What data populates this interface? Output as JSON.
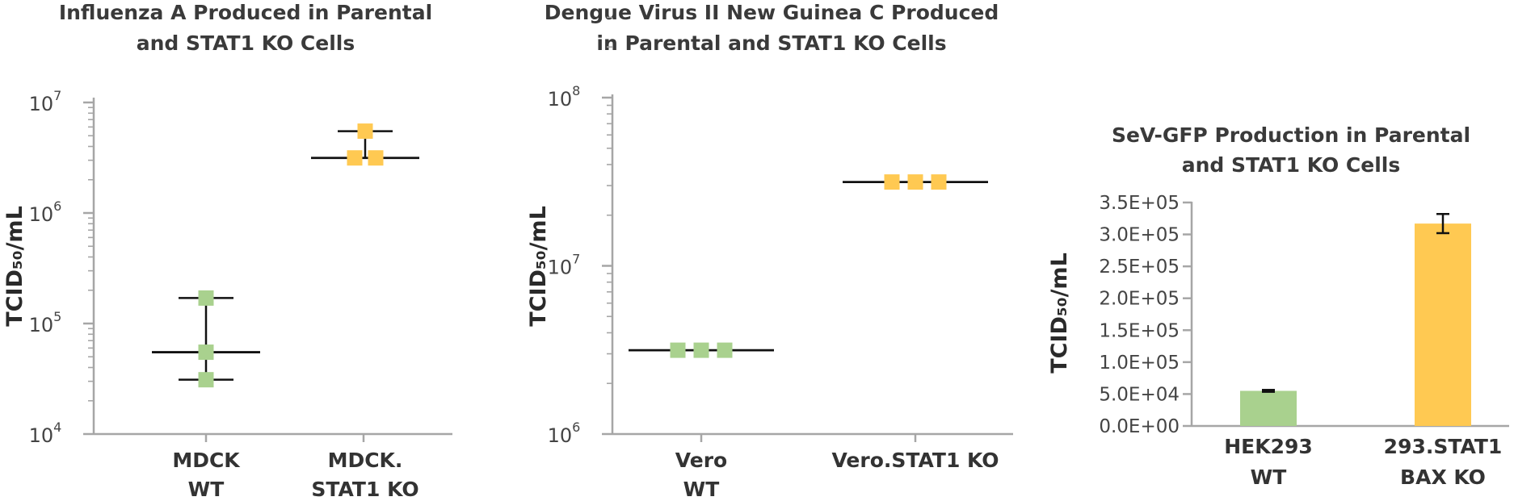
{
  "chart_data": [
    {
      "type": "scatter",
      "title_lines": [
        "Influenza A Produced in Parental",
        "and STAT1 KO Cells"
      ],
      "ylabel": "TCID₅₀/mL",
      "yscale": "log",
      "ylim": [
        10000,
        10000000
      ],
      "yticks": [
        {
          "base": "10",
          "exp": "4",
          "value": 10000
        },
        {
          "base": "10",
          "exp": "5",
          "value": 100000
        },
        {
          "base": "10",
          "exp": "6",
          "value": 1000000
        },
        {
          "base": "10",
          "exp": "7",
          "value": 10000000
        }
      ],
      "categories": [
        {
          "lines": [
            "MDCK",
            "WT"
          ]
        },
        {
          "lines": [
            "MDCK.",
            "STAT1 KO"
          ]
        }
      ],
      "groups": [
        {
          "color": "#a9d18e",
          "points": [
            170000,
            55000,
            31000
          ],
          "mean": 55000,
          "error": [
            31000,
            170000
          ]
        },
        {
          "color": "#ffc952",
          "points": [
            5500000,
            3150000,
            3150000
          ],
          "mean": 3150000,
          "error": [
            3150000,
            5500000
          ]
        }
      ]
    },
    {
      "type": "scatter",
      "title_lines": [
        "Dengue Virus II New Guinea C Produced",
        "in Parental and STAT1 KO Cells"
      ],
      "ylabel": "TCID₅₀/mL",
      "yscale": "log",
      "ylim": [
        1000000,
        100000000
      ],
      "yticks": [
        {
          "base": "10",
          "exp": "6",
          "value": 1000000
        },
        {
          "base": "10",
          "exp": "7",
          "value": 10000000
        },
        {
          "base": "10",
          "exp": "8",
          "value": 100000000
        }
      ],
      "categories": [
        {
          "lines": [
            "Vero",
            "WT"
          ]
        },
        {
          "lines": [
            "Vero.STAT1 KO"
          ]
        }
      ],
      "groups": [
        {
          "color": "#a9d18e",
          "points": [
            3150000,
            3150000,
            3150000
          ],
          "mean": 3150000
        },
        {
          "color": "#ffc952",
          "points": [
            31500000,
            31500000,
            31500000
          ],
          "mean": 31500000
        }
      ]
    },
    {
      "type": "bar",
      "title_lines": [
        "SeV-GFP Production in Parental",
        "and STAT1 KO Cells"
      ],
      "ylabel": "TCID₅₀/mL",
      "ylim": [
        0,
        350000
      ],
      "yticks": [
        "0.0E+00",
        "5.0E+04",
        "1.0E+05",
        "1.5E+05",
        "2.0E+05",
        "2.5E+05",
        "3.0E+05",
        "3.5E+05"
      ],
      "categories": [
        {
          "lines": [
            "HEK293",
            "WT"
          ]
        },
        {
          "lines": [
            "293.STAT1",
            "BAX KO"
          ]
        }
      ],
      "values": [
        55000,
        317000
      ],
      "errors": [
        1500,
        15000
      ],
      "colors": [
        "#a9d18e",
        "#ffc952"
      ]
    }
  ]
}
